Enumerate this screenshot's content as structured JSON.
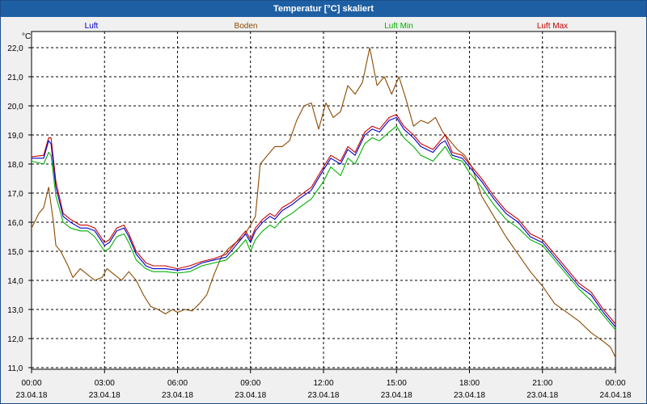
{
  "window": {
    "title": "Temperatur [°C] skaliert"
  },
  "colors": {
    "luft": "#0000c8",
    "boden": "#8b4a00",
    "luft_min": "#00b000",
    "luft_max": "#c80000"
  },
  "chart_data": {
    "type": "line",
    "title": "Temperatur [°C] skaliert",
    "ylabel": "°C",
    "xlabel": "",
    "grid": true,
    "legend_position": "top",
    "ylim": [
      11.0,
      22.0
    ],
    "xlim": [
      0,
      24
    ],
    "y_ticks": [
      "22,0",
      "21,0",
      "20,0",
      "19,0",
      "18,0",
      "17,0",
      "16,0",
      "15,0",
      "14,0",
      "13,0",
      "12,0",
      "11,0"
    ],
    "x_ticks": [
      {
        "time": "00:00",
        "date": "23.04.18"
      },
      {
        "time": "03:00",
        "date": "23.04.18"
      },
      {
        "time": "06:00",
        "date": "23.04.18"
      },
      {
        "time": "09:00",
        "date": "23.04.18"
      },
      {
        "time": "12:00",
        "date": "23.04.18"
      },
      {
        "time": "15:00",
        "date": "23.04.18"
      },
      {
        "time": "18:00",
        "date": "23.04.18"
      },
      {
        "time": "21:00",
        "date": "23.04.18"
      },
      {
        "time": "00:00",
        "date": "24.04.18"
      }
    ],
    "series": [
      {
        "name": "Luft",
        "color": "#0000c8",
        "x": [
          0,
          0.5,
          0.7,
          0.8,
          1.0,
          1.3,
          1.6,
          2.0,
          2.3,
          2.6,
          3.0,
          3.2,
          3.5,
          3.8,
          4.0,
          4.3,
          4.7,
          5.0,
          5.5,
          6.0,
          6.5,
          7.0,
          7.5,
          8.0,
          8.5,
          8.8,
          9.0,
          9.2,
          9.5,
          9.8,
          10.0,
          10.3,
          10.7,
          11.0,
          11.5,
          12.0,
          12.3,
          12.7,
          13.0,
          13.3,
          13.7,
          14.0,
          14.3,
          14.7,
          15.0,
          15.3,
          15.7,
          16.0,
          16.5,
          16.8,
          17.0,
          17.3,
          17.7,
          18.0,
          18.5,
          19.0,
          19.5,
          20.0,
          20.5,
          21.0,
          21.5,
          22.0,
          22.5,
          23.0,
          23.5,
          24.0
        ],
        "values": [
          18.2,
          18.2,
          18.8,
          18.7,
          17.2,
          16.2,
          16.0,
          15.8,
          15.8,
          15.7,
          15.2,
          15.3,
          15.7,
          15.8,
          15.5,
          14.9,
          14.5,
          14.4,
          14.4,
          14.35,
          14.4,
          14.6,
          14.7,
          14.8,
          15.3,
          15.6,
          15.3,
          15.7,
          16.0,
          16.2,
          16.1,
          16.4,
          16.6,
          16.8,
          17.1,
          17.8,
          18.2,
          18.0,
          18.5,
          18.3,
          19.0,
          19.2,
          19.1,
          19.5,
          19.6,
          19.2,
          18.9,
          18.6,
          18.4,
          18.7,
          18.8,
          18.3,
          18.2,
          17.9,
          17.4,
          16.8,
          16.3,
          16.0,
          15.5,
          15.3,
          14.8,
          14.3,
          13.8,
          13.5,
          12.9,
          12.4
        ]
      },
      {
        "name": "Boden",
        "color": "#8b4a00",
        "x": [
          0,
          0.3,
          0.5,
          0.7,
          0.9,
          1.0,
          1.2,
          1.5,
          1.7,
          2.0,
          2.3,
          2.6,
          2.9,
          3.1,
          3.4,
          3.7,
          4.0,
          4.3,
          4.6,
          4.9,
          5.2,
          5.5,
          5.8,
          6.0,
          6.3,
          6.6,
          6.9,
          7.2,
          7.5,
          7.8,
          8.1,
          8.4,
          8.7,
          9.0,
          9.2,
          9.4,
          9.7,
          10.0,
          10.3,
          10.6,
          10.9,
          11.2,
          11.5,
          11.8,
          12.1,
          12.4,
          12.7,
          13.0,
          13.3,
          13.6,
          13.9,
          14.2,
          14.5,
          14.8,
          15.1,
          15.4,
          15.7,
          16.0,
          16.3,
          16.6,
          16.9,
          17.2,
          17.5,
          17.8,
          18.1,
          18.5,
          19.0,
          19.5,
          20.0,
          20.5,
          21.0,
          21.5,
          22.0,
          22.5,
          23.0,
          23.5,
          23.8,
          24.0
        ],
        "values": [
          15.8,
          16.3,
          16.5,
          17.2,
          16.0,
          15.2,
          15.0,
          14.5,
          14.1,
          14.4,
          14.2,
          14.0,
          14.1,
          14.4,
          14.2,
          14.0,
          14.3,
          14.0,
          13.5,
          13.1,
          13.0,
          12.85,
          13.0,
          12.9,
          13.0,
          12.95,
          13.2,
          13.5,
          14.2,
          14.8,
          15.1,
          15.3,
          15.5,
          15.9,
          16.2,
          18.0,
          18.3,
          18.6,
          18.6,
          18.8,
          19.5,
          20.0,
          20.1,
          19.2,
          20.1,
          19.6,
          19.8,
          20.7,
          20.4,
          20.8,
          22.0,
          20.7,
          21.0,
          20.4,
          21.0,
          20.2,
          19.3,
          19.5,
          19.4,
          19.6,
          19.1,
          18.8,
          18.5,
          18.3,
          17.9,
          16.9,
          16.2,
          15.5,
          14.9,
          14.3,
          13.8,
          13.2,
          12.9,
          12.6,
          12.2,
          11.9,
          11.7,
          11.35
        ]
      },
      {
        "name": "Luft Min",
        "color": "#00b000",
        "x": [
          0,
          0.5,
          0.7,
          0.8,
          1.0,
          1.3,
          1.6,
          2.0,
          2.3,
          2.6,
          3.0,
          3.2,
          3.5,
          3.8,
          4.0,
          4.3,
          4.7,
          5.0,
          5.5,
          6.0,
          6.5,
          7.0,
          7.5,
          8.0,
          8.5,
          8.8,
          9.0,
          9.2,
          9.5,
          9.8,
          10.0,
          10.3,
          10.7,
          11.0,
          11.5,
          12.0,
          12.3,
          12.7,
          13.0,
          13.3,
          13.7,
          14.0,
          14.3,
          14.7,
          15.0,
          15.3,
          15.7,
          16.0,
          16.5,
          16.8,
          17.0,
          17.3,
          17.7,
          18.0,
          18.5,
          19.0,
          19.5,
          20.0,
          20.5,
          21.0,
          21.5,
          22.0,
          22.5,
          23.0,
          23.5,
          24.0
        ],
        "values": [
          18.1,
          18.0,
          18.4,
          18.3,
          16.9,
          16.0,
          15.8,
          15.7,
          15.7,
          15.5,
          15.0,
          15.1,
          15.5,
          15.6,
          15.3,
          14.7,
          14.4,
          14.3,
          14.3,
          14.25,
          14.3,
          14.5,
          14.6,
          14.7,
          15.1,
          15.4,
          15.0,
          15.4,
          15.7,
          15.9,
          15.8,
          16.1,
          16.3,
          16.5,
          16.8,
          17.4,
          17.9,
          17.6,
          18.2,
          18.0,
          18.7,
          18.9,
          18.8,
          19.1,
          19.3,
          18.9,
          18.6,
          18.3,
          18.1,
          18.4,
          18.6,
          18.2,
          18.1,
          17.7,
          17.2,
          16.6,
          16.1,
          15.8,
          15.4,
          15.2,
          14.7,
          14.2,
          13.7,
          13.3,
          12.8,
          12.3
        ]
      },
      {
        "name": "Luft Max",
        "color": "#c80000",
        "x": [
          0,
          0.5,
          0.7,
          0.8,
          1.0,
          1.3,
          1.6,
          2.0,
          2.3,
          2.6,
          3.0,
          3.2,
          3.5,
          3.8,
          4.0,
          4.3,
          4.7,
          5.0,
          5.5,
          6.0,
          6.5,
          7.0,
          7.5,
          8.0,
          8.5,
          8.8,
          9.0,
          9.2,
          9.5,
          9.8,
          10.0,
          10.3,
          10.7,
          11.0,
          11.5,
          12.0,
          12.3,
          12.7,
          13.0,
          13.3,
          13.7,
          14.0,
          14.3,
          14.7,
          15.0,
          15.3,
          15.7,
          16.0,
          16.5,
          16.8,
          17.0,
          17.3,
          17.7,
          18.0,
          18.5,
          19.0,
          19.5,
          20.0,
          20.5,
          21.0,
          21.5,
          22.0,
          22.5,
          23.0,
          23.5,
          24.0
        ],
        "values": [
          18.25,
          18.3,
          18.9,
          18.9,
          17.4,
          16.3,
          16.1,
          15.9,
          15.9,
          15.8,
          15.3,
          15.4,
          15.8,
          15.9,
          15.6,
          15.0,
          14.6,
          14.5,
          14.5,
          14.4,
          14.5,
          14.65,
          14.75,
          14.9,
          15.4,
          15.7,
          15.4,
          15.8,
          16.1,
          16.3,
          16.2,
          16.5,
          16.7,
          16.9,
          17.2,
          17.9,
          18.3,
          18.1,
          18.6,
          18.4,
          19.1,
          19.3,
          19.2,
          19.6,
          19.7,
          19.3,
          19.0,
          18.7,
          18.5,
          18.8,
          19.0,
          18.4,
          18.3,
          18.0,
          17.5,
          16.9,
          16.4,
          16.1,
          15.6,
          15.4,
          14.9,
          14.4,
          13.9,
          13.6,
          13.0,
          12.5
        ]
      }
    ]
  }
}
